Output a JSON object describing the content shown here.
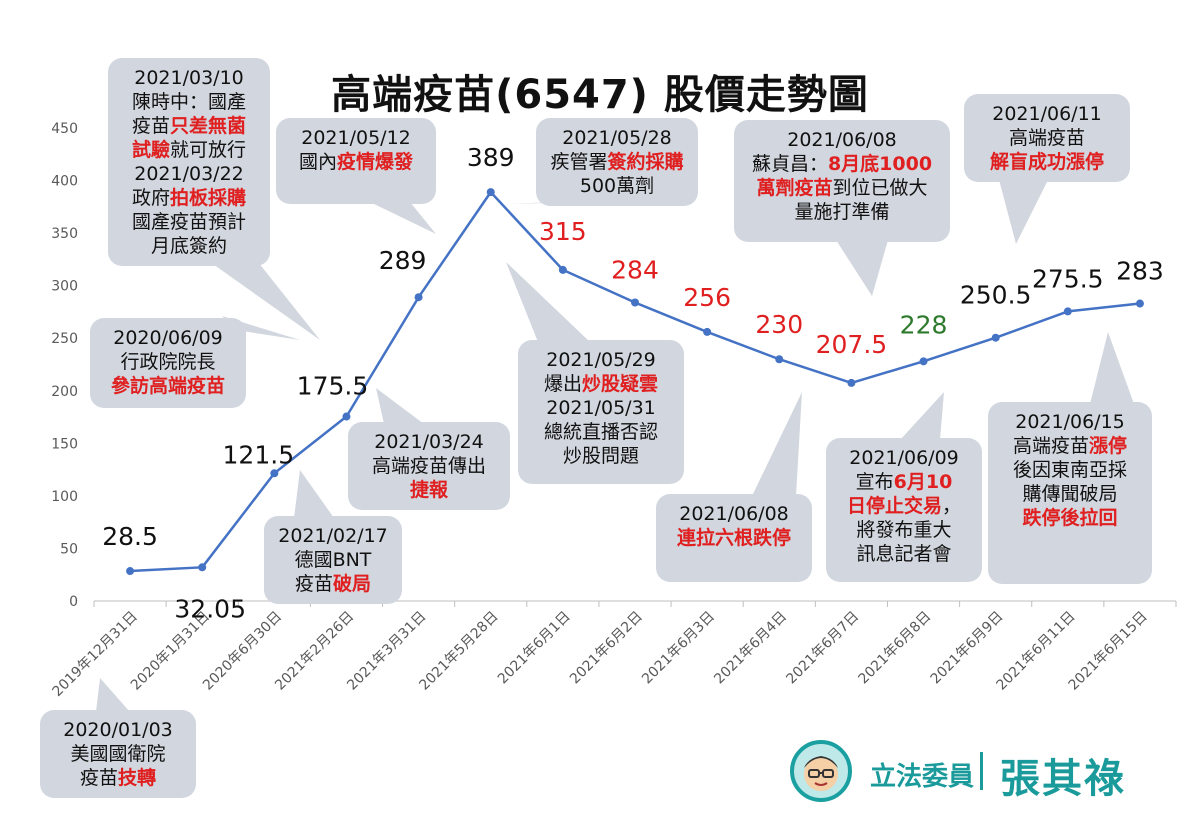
{
  "chart_data": {
    "type": "line",
    "title": "高端疫苗(6547) 股價走勢圖",
    "categories": [
      "2019年12月31日",
      "2020年1月31日",
      "2020年6月30日",
      "2021年2月26日",
      "2021年3月31日",
      "2021年5月28日",
      "2021年6月1日",
      "2021年6月2日",
      "2021年6月3日",
      "2021年6月4日",
      "2021年6月7日",
      "2021年6月8日",
      "2021年6月9日",
      "2021年6月11日",
      "2021年6月15日"
    ],
    "values": [
      28.5,
      32.05,
      121.5,
      175.5,
      289,
      389,
      315,
      284,
      256,
      230,
      207.5,
      228,
      250.5,
      275.5,
      283
    ],
    "value_labels": [
      "28.5",
      "32.05",
      "121.5",
      "175.5",
      "289",
      "389",
      "315",
      "284",
      "256",
      "230",
      "207.5",
      "228",
      "250.5",
      "275.5",
      "283"
    ],
    "label_colors": [
      "#111111",
      "#111111",
      "#111111",
      "#111111",
      "#111111",
      "#111111",
      "#e02020",
      "#e02020",
      "#e02020",
      "#e02020",
      "#e02020",
      "#2d7a2d",
      "#111111",
      "#111111",
      "#111111"
    ],
    "ylim": [
      0,
      450
    ],
    "yticks": [
      "0",
      "50",
      "100",
      "150",
      "200",
      "250",
      "300",
      "350",
      "400",
      "450"
    ],
    "line_color": "#4472c4",
    "grid": false
  },
  "annotations": [
    {
      "id": "ann-2021-0310",
      "lines": [
        [
          {
            "t": "2021/03/10"
          }
        ],
        [
          {
            "t": "陳時中：國產"
          }
        ],
        [
          {
            "t": "疫苗"
          },
          {
            "t": "只差無菌",
            "r": true
          }
        ],
        [
          {
            "t": "試驗",
            "r": true
          },
          {
            "t": "就可放行"
          }
        ],
        [
          {
            "t": "2021/03/22"
          }
        ],
        [
          {
            "t": "政府"
          },
          {
            "t": "拍板採購",
            "r": true
          }
        ],
        [
          {
            "t": "國產疫苗預計"
          }
        ],
        [
          {
            "t": "月底簽約"
          }
        ]
      ]
    },
    {
      "id": "ann-2021-0512",
      "lines": [
        [
          {
            "t": "2021/05/12"
          }
        ],
        [
          {
            "t": "國內"
          },
          {
            "t": "疫情爆發",
            "r": true
          }
        ]
      ]
    },
    {
      "id": "ann-2021-0528",
      "lines": [
        [
          {
            "t": "2021/05/28"
          }
        ],
        [
          {
            "t": "疾管署"
          },
          {
            "t": "簽約採購",
            "r": true
          }
        ],
        [
          {
            "t": "500萬劑"
          }
        ]
      ]
    },
    {
      "id": "ann-2021-0608a",
      "lines": [
        [
          {
            "t": "2021/06/08"
          }
        ],
        [
          {
            "t": "蘇貞昌："
          },
          {
            "t": "8月底1000",
            "r": true
          }
        ],
        [
          {
            "t": "萬劑疫苗",
            "r": true
          },
          {
            "t": "到位已做大"
          }
        ],
        [
          {
            "t": "量施打準備"
          }
        ]
      ]
    },
    {
      "id": "ann-2021-0611",
      "lines": [
        [
          {
            "t": "2021/06/11"
          }
        ],
        [
          {
            "t": "高端疫苗"
          }
        ],
        [
          {
            "t": "解盲成功漲停",
            "r": true
          }
        ]
      ]
    },
    {
      "id": "ann-2020-0609",
      "lines": [
        [
          {
            "t": "2020/06/09"
          }
        ],
        [
          {
            "t": "行政院院長"
          }
        ],
        [
          {
            "t": "參訪高端疫苗",
            "r": true
          }
        ]
      ]
    },
    {
      "id": "ann-2021-0529",
      "lines": [
        [
          {
            "t": "2021/05/29"
          }
        ],
        [
          {
            "t": "爆出"
          },
          {
            "t": "炒股疑雲",
            "r": true
          }
        ],
        [
          {
            "t": "2021/05/31"
          }
        ],
        [
          {
            "t": "總統直播否認"
          }
        ],
        [
          {
            "t": "炒股問題"
          }
        ]
      ]
    },
    {
      "id": "ann-2021-0324",
      "lines": [
        [
          {
            "t": "2021/03/24"
          }
        ],
        [
          {
            "t": "高端疫苗傳出"
          }
        ],
        [
          {
            "t": "捷報",
            "r": true
          }
        ]
      ]
    },
    {
      "id": "ann-2021-0217",
      "lines": [
        [
          {
            "t": "2021/02/17"
          }
        ],
        [
          {
            "t": "德國BNT"
          }
        ],
        [
          {
            "t": "疫苗"
          },
          {
            "t": "破局",
            "r": true
          }
        ]
      ]
    },
    {
      "id": "ann-2021-0608b",
      "lines": [
        [
          {
            "t": "2021/06/08"
          }
        ],
        [
          {
            "t": "連拉六根跌停",
            "r": true
          }
        ]
      ]
    },
    {
      "id": "ann-2021-0609",
      "lines": [
        [
          {
            "t": "2021/06/09"
          }
        ],
        [
          {
            "t": "宣布"
          },
          {
            "t": "6月10",
            "r": true
          }
        ],
        [
          {
            "t": "日停止交易",
            "r": true
          },
          {
            "t": "，"
          }
        ],
        [
          {
            "t": "將發布重大"
          }
        ],
        [
          {
            "t": "訊息記者會"
          }
        ]
      ]
    },
    {
      "id": "ann-2021-0615",
      "lines": [
        [
          {
            "t": "2021/06/15"
          }
        ],
        [
          {
            "t": "高端疫苗"
          },
          {
            "t": "漲停",
            "r": true
          }
        ],
        [
          {
            "t": "後因東南亞採"
          }
        ],
        [
          {
            "t": "購傳聞破局"
          }
        ],
        [
          {
            "t": "跌停後拉回",
            "r": true
          }
        ]
      ]
    },
    {
      "id": "ann-2020-0103",
      "lines": [
        [
          {
            "t": "2020/01/03"
          }
        ],
        [
          {
            "t": "美國國衛院"
          }
        ],
        [
          {
            "t": "疫苗"
          },
          {
            "t": "技轉",
            "r": true
          }
        ]
      ]
    }
  ],
  "brand": {
    "role": "立法委員",
    "name": "張其祿",
    "accent": "#1a9a9a"
  }
}
